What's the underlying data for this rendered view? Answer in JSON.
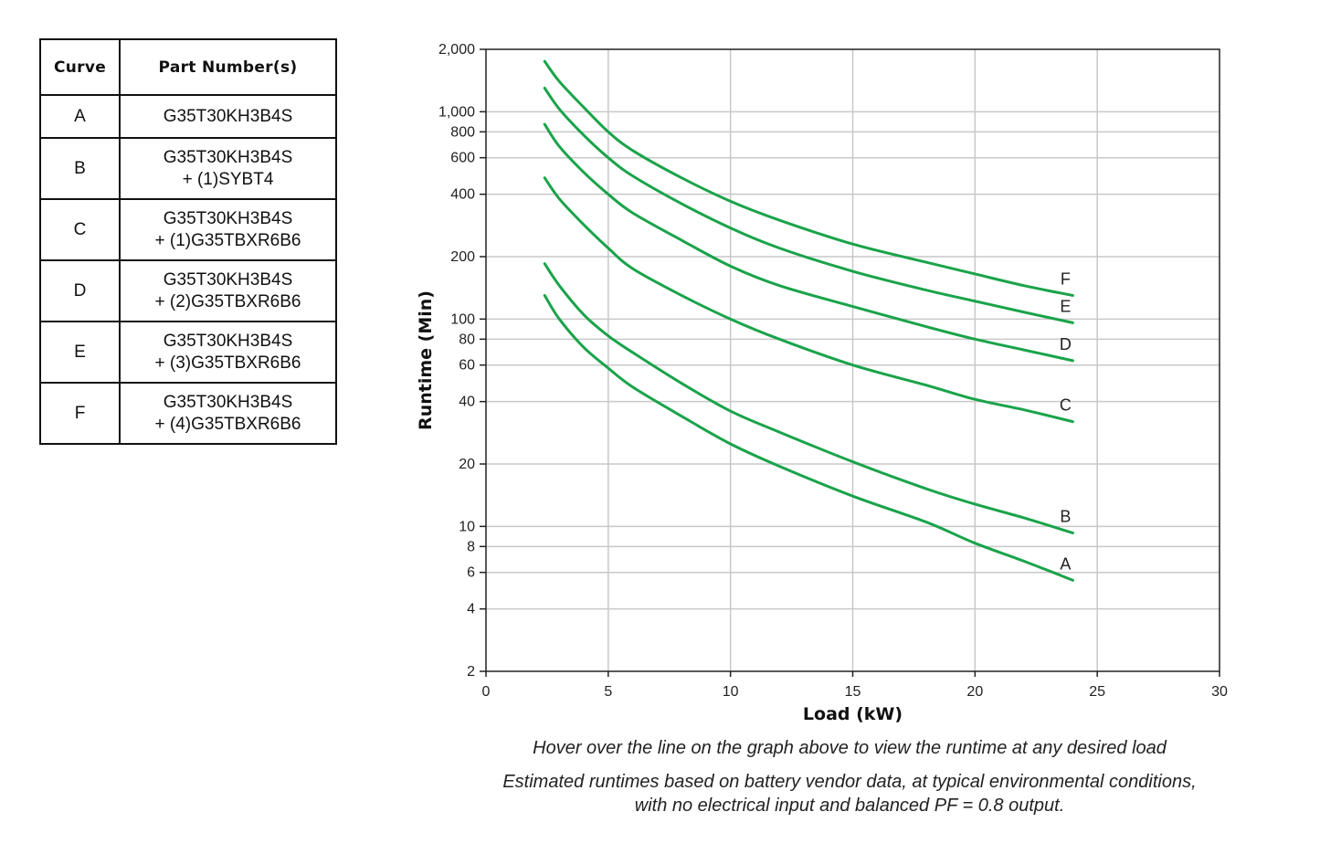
{
  "table": {
    "headers": [
      "Curve",
      "Part Number(s)"
    ],
    "rows": [
      {
        "curve": "A",
        "line1": "G35T30KH3B4S",
        "line2": ""
      },
      {
        "curve": "B",
        "line1": "G35T30KH3B4S",
        "line2": "+ (1)SYBT4"
      },
      {
        "curve": "C",
        "line1": "G35T30KH3B4S",
        "line2": "+ (1)G35TBXR6B6"
      },
      {
        "curve": "D",
        "line1": "G35T30KH3B4S",
        "line2": "+ (2)G35TBXR6B6"
      },
      {
        "curve": "E",
        "line1": "G35T30KH3B4S",
        "line2": "+ (3)G35TBXR6B6"
      },
      {
        "curve": "F",
        "line1": "G35T30KH3B4S",
        "line2": "+ (4)G35TBXR6B6"
      }
    ]
  },
  "chart_data": {
    "type": "line",
    "title": "",
    "xlabel": "Load (kW)",
    "ylabel": "Runtime (Min)",
    "xlim": [
      0,
      30
    ],
    "ylim": [
      2,
      2000
    ],
    "yscale": "log",
    "xticks": [
      0,
      5,
      10,
      15,
      20,
      25,
      30
    ],
    "yticks": [
      2,
      4,
      6,
      8,
      10,
      20,
      40,
      60,
      80,
      100,
      200,
      400,
      600,
      800,
      1000,
      2000
    ],
    "ytick_labels": [
      "2",
      "4",
      "6",
      "8",
      "10",
      "20",
      "40",
      "60",
      "80",
      "100",
      "200",
      "400",
      "600",
      "800",
      "1,000",
      "2,000"
    ],
    "grid": true,
    "line_color": "#1aa34a",
    "series": [
      {
        "name": "A",
        "x": [
          2.4,
          3,
          4,
          5,
          6,
          8,
          10,
          12,
          15,
          18,
          20,
          22,
          24
        ],
        "y": [
          130,
          100,
          73,
          58,
          47,
          34,
          25,
          19.5,
          14,
          10.5,
          8.3,
          6.8,
          5.5
        ]
      },
      {
        "name": "B",
        "x": [
          2.4,
          3,
          4,
          5,
          6,
          8,
          10,
          12,
          15,
          18,
          20,
          22,
          24
        ],
        "y": [
          185,
          145,
          105,
          83,
          69,
          49,
          36,
          28.5,
          20.5,
          15.2,
          12.8,
          11,
          9.3
        ]
      },
      {
        "name": "C",
        "x": [
          2.4,
          3,
          4,
          5,
          6,
          8,
          10,
          12,
          15,
          18,
          20,
          22,
          24
        ],
        "y": [
          480,
          380,
          285,
          220,
          175,
          130,
          100,
          80,
          60,
          48,
          41,
          36.5,
          32
        ]
      },
      {
        "name": "D",
        "x": [
          2.4,
          3,
          4,
          5,
          6,
          8,
          10,
          12,
          15,
          18,
          20,
          22,
          24
        ],
        "y": [
          870,
          680,
          510,
          400,
          325,
          240,
          180,
          145,
          115,
          92,
          80,
          71,
          63
        ]
      },
      {
        "name": "E",
        "x": [
          2.4,
          3,
          4,
          5,
          6,
          8,
          10,
          12,
          15,
          18,
          20,
          22,
          24
        ],
        "y": [
          1300,
          1030,
          770,
          600,
          490,
          360,
          275,
          220,
          170,
          138,
          122,
          108,
          96
        ]
      },
      {
        "name": "F",
        "x": [
          2.4,
          3,
          4,
          5,
          6,
          8,
          10,
          12,
          15,
          18,
          20,
          22,
          24
        ],
        "y": [
          1750,
          1400,
          1050,
          800,
          650,
          480,
          370,
          300,
          230,
          188,
          165,
          145,
          130
        ]
      }
    ]
  },
  "captions": {
    "hover": "Hover over the line on the graph above to view the runtime at any desired load",
    "note_line1": "Estimated runtimes based on battery vendor data, at typical environmental conditions,",
    "note_line2": "with no electrical input and balanced PF = 0.8 output."
  }
}
